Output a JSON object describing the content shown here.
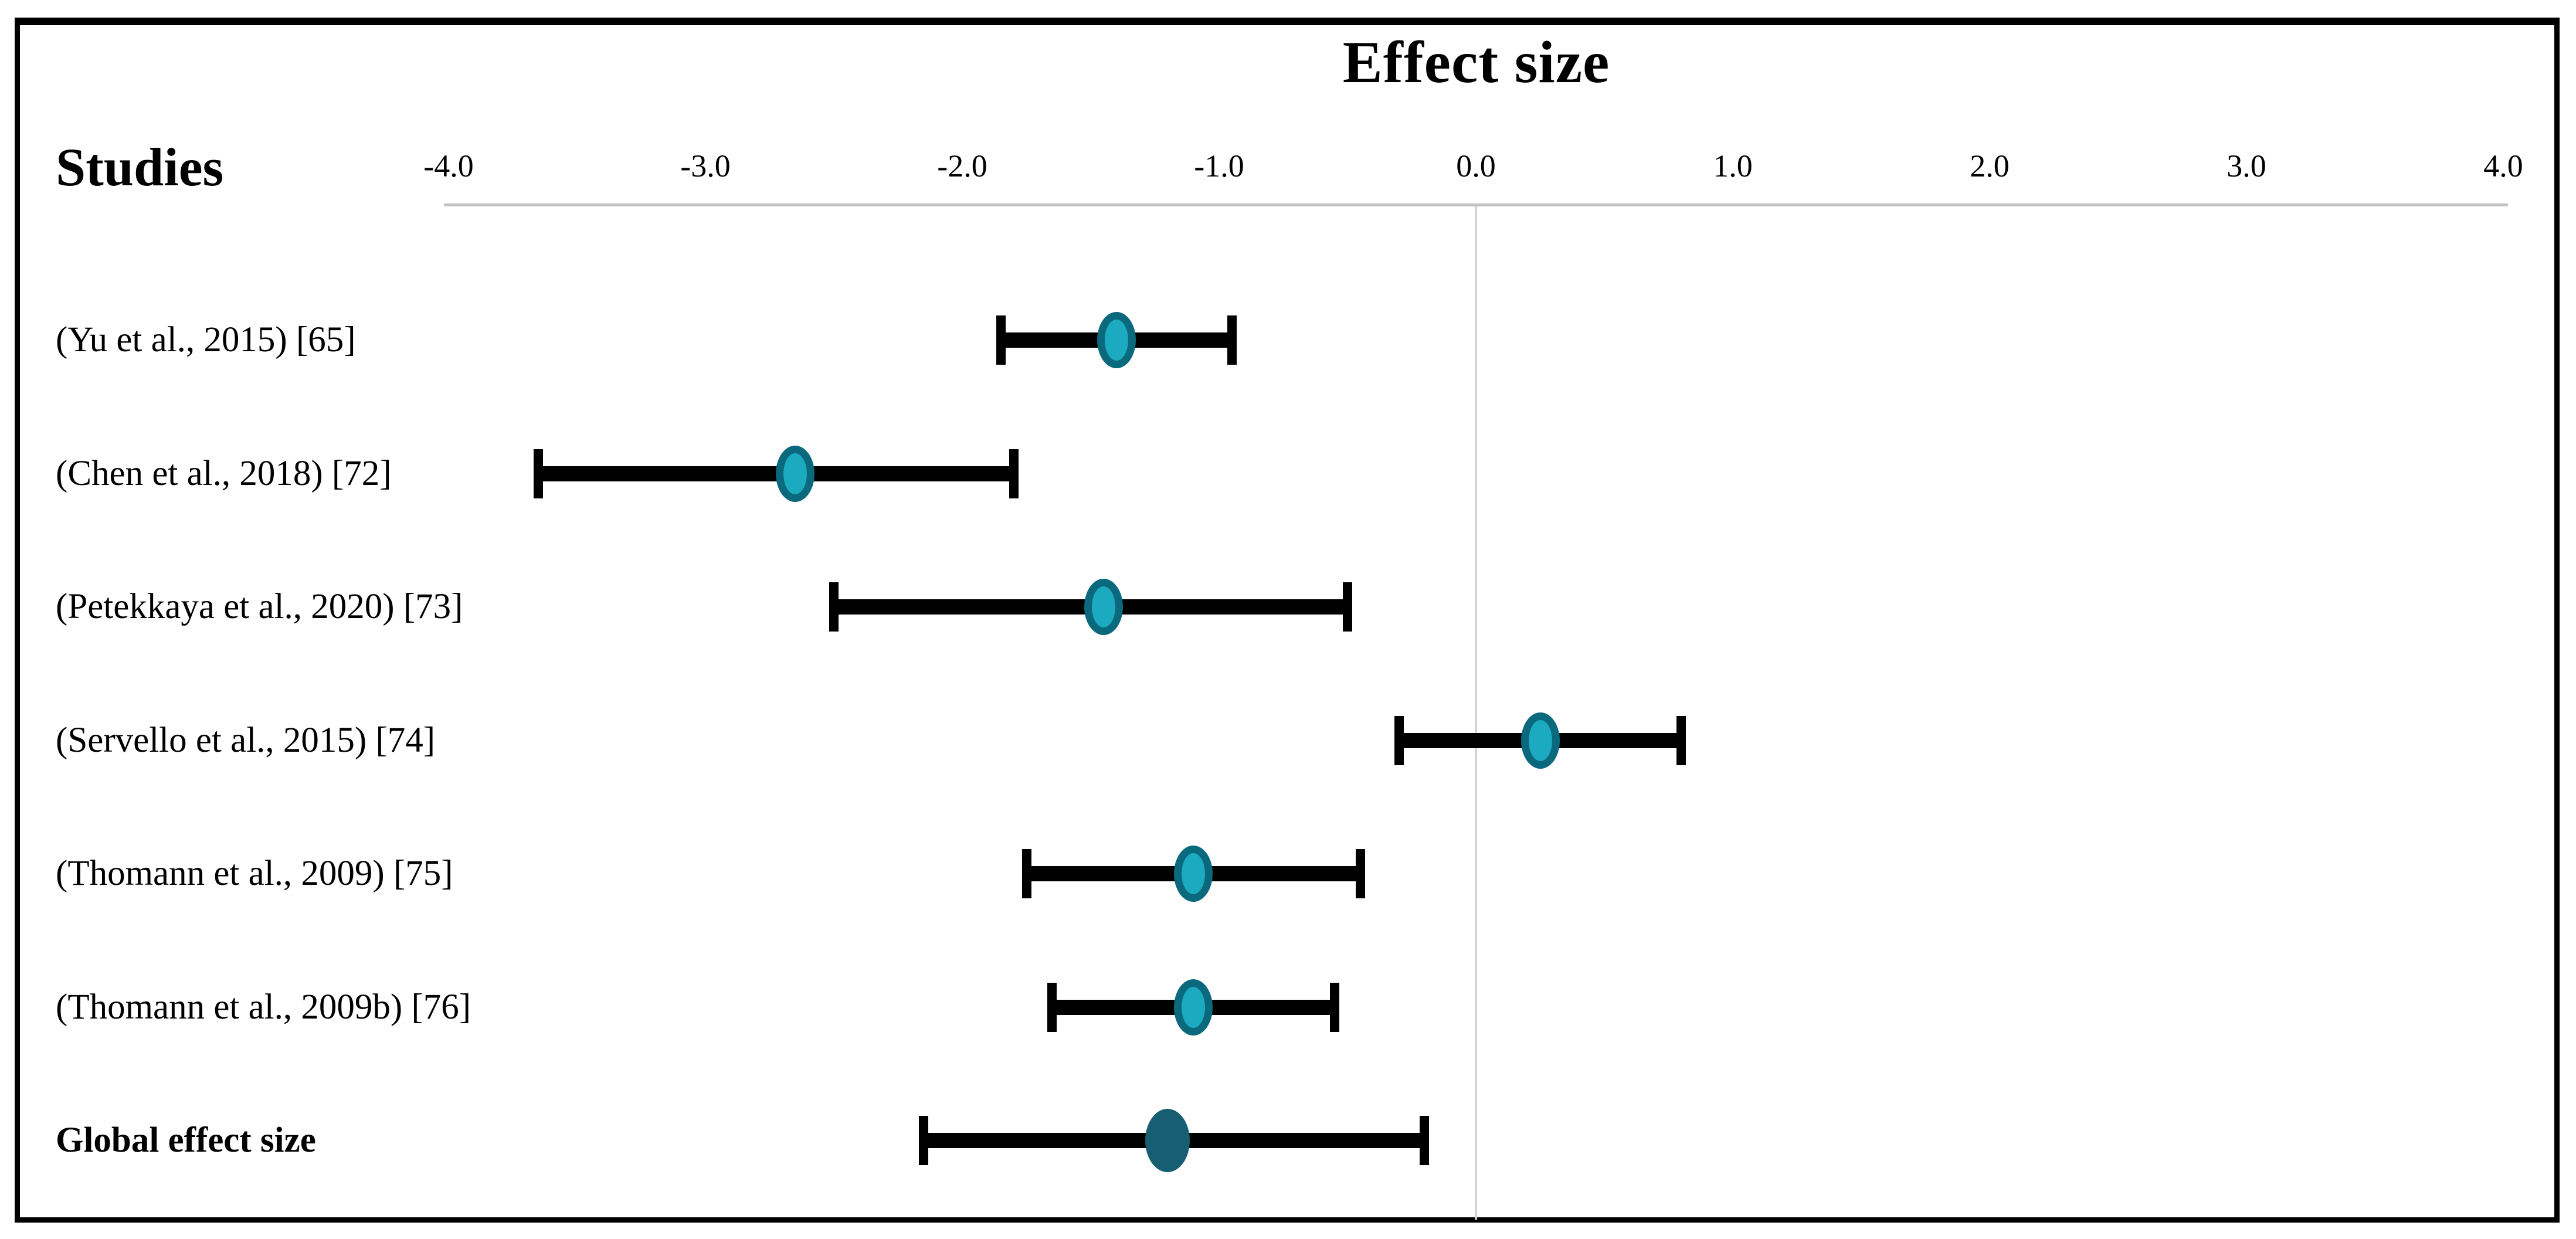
{
  "chart_data": {
    "type": "scatter",
    "variant": "forest-plot",
    "title": "Effect size",
    "left_header": "Studies",
    "xlabel": "",
    "ylabel": "",
    "xlim": [
      -4.0,
      4.0
    ],
    "grid": false,
    "zero_reference_line": 0.0,
    "legend": null,
    "x_tick_labels": [
      "-4.0",
      "-3.0",
      "-2.0",
      "-1.0",
      "0.0",
      "1.0",
      "2.0",
      "3.0",
      "4.0"
    ],
    "x_tick_values": [
      -4.0,
      -3.0,
      -2.0,
      -1.0,
      0.0,
      1.0,
      2.0,
      3.0,
      4.0
    ],
    "studies": [
      {
        "label": "(Yu et al., 2015) [65]",
        "mean": -1.4,
        "ci_low": -1.85,
        "ci_high": -0.95,
        "is_summary": false
      },
      {
        "label": "(Chen et al., 2018) [72]",
        "mean": -2.65,
        "ci_low": -3.65,
        "ci_high": -1.8,
        "is_summary": false
      },
      {
        "label": "(Petekkaya et al., 2020) [73]",
        "mean": -1.45,
        "ci_low": -2.5,
        "ci_high": -0.5,
        "is_summary": false
      },
      {
        "label": "(Servello et al., 2015) [74]",
        "mean": 0.25,
        "ci_low": -0.3,
        "ci_high": 0.8,
        "is_summary": false
      },
      {
        "label": "(Thomann et al., 2009) [75]",
        "mean": -1.1,
        "ci_low": -1.75,
        "ci_high": -0.45,
        "is_summary": false
      },
      {
        "label": "(Thomann et al., 2009b) [76]",
        "mean": -1.1,
        "ci_low": -1.65,
        "ci_high": -0.55,
        "is_summary": false
      },
      {
        "label": "Global effect size",
        "mean": -1.2,
        "ci_low": -2.15,
        "ci_high": -0.2,
        "is_summary": true
      }
    ],
    "colors": {
      "study_marker_fill": "#1BAAC0",
      "study_marker_stroke": "#0B697E",
      "summary_marker_fill": "#175E73",
      "summary_marker_stroke": "#175E73",
      "error_bar": "#000000",
      "axis_line": "#c2c2c2",
      "zero_line": "#d4d4d4",
      "frame_border": "#000000",
      "text": "#000000"
    }
  }
}
